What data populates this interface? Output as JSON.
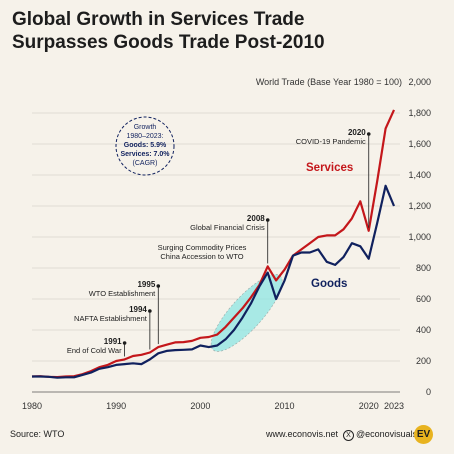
{
  "title_lines": [
    "Global Growth in Services Trade",
    "Surpasses Goods Trade Post-2010"
  ],
  "footer": {
    "source": "Source: WTO",
    "website": "www.econovis.net",
    "social": "@econovisuals",
    "logo_text": "EV"
  },
  "colors": {
    "background": "#f6f2ea",
    "services": "#c4171b",
    "goods": "#10215e",
    "highlight": "#8ee6e4",
    "grid": "#c9c5bd"
  },
  "chart_data": {
    "type": "line",
    "title": "Global Growth in Services Trade Surpasses Goods Trade Post-2010",
    "ylabel": "World Trade (Base Year 1980 = 100)",
    "xlabel": "",
    "xlim": [
      1980,
      2023
    ],
    "ylim": [
      0,
      2000
    ],
    "y_ticks": [
      0,
      200,
      400,
      600,
      800,
      1000,
      1200,
      1400,
      1600,
      1800,
      2000
    ],
    "y_tick_labels": [
      "0",
      "200",
      "400",
      "600",
      "800",
      "1,000",
      "1,200",
      "1,400",
      "1,600",
      "1,800",
      "2,000"
    ],
    "x_ticks": [
      1980,
      1990,
      2000,
      2010,
      2020,
      2023
    ],
    "grid": true,
    "x": [
      1980,
      1981,
      1982,
      1983,
      1984,
      1985,
      1986,
      1987,
      1988,
      1989,
      1990,
      1991,
      1992,
      1993,
      1994,
      1995,
      1996,
      1997,
      1998,
      1999,
      2000,
      2001,
      2002,
      2003,
      2004,
      2005,
      2006,
      2007,
      2008,
      2009,
      2010,
      2011,
      2012,
      2013,
      2014,
      2015,
      2016,
      2017,
      2018,
      2019,
      2020,
      2021,
      2022,
      2023
    ],
    "series": [
      {
        "name": "Services",
        "values": [
          100,
          102,
          98,
          96,
          100,
          102,
          115,
          135,
          160,
          175,
          200,
          210,
          232,
          240,
          255,
          290,
          305,
          320,
          322,
          330,
          350,
          355,
          370,
          420,
          480,
          540,
          610,
          690,
          810,
          720,
          790,
          880,
          920,
          960,
          1000,
          1010,
          1010,
          1050,
          1120,
          1230,
          1040,
          1360,
          1700,
          1820
        ]
      },
      {
        "name": "Goods",
        "values": [
          100,
          100,
          98,
          92,
          95,
          95,
          110,
          125,
          150,
          160,
          175,
          180,
          185,
          180,
          210,
          250,
          265,
          270,
          272,
          275,
          300,
          290,
          300,
          340,
          400,
          480,
          570,
          680,
          770,
          600,
          720,
          880,
          900,
          900,
          920,
          840,
          820,
          870,
          960,
          940,
          860,
          1090,
          1330,
          1200
        ]
      }
    ],
    "highlight": {
      "x_start": 2002,
      "x_end": 2009,
      "label_lines": [
        "Surging Commodity Prices",
        "China Accession to WTO"
      ]
    },
    "annotations": [
      {
        "x": 1991,
        "year": "1991",
        "text": "End of Cold War"
      },
      {
        "x": 1994,
        "year": "1994",
        "text": "NAFTA Establishment"
      },
      {
        "x": 1995,
        "year": "1995",
        "text": "WTO Establishment"
      },
      {
        "x": 2008,
        "year": "2008",
        "text": "Global Financial Crisis"
      },
      {
        "x": 2020,
        "year": "2020",
        "text": "COVID-19 Pandemic"
      }
    ],
    "cagr_box": {
      "lines": [
        "Growth",
        "1980–2023:",
        "Goods: 5.9%",
        "Services: 7.0%",
        "(CAGR)"
      ]
    }
  }
}
